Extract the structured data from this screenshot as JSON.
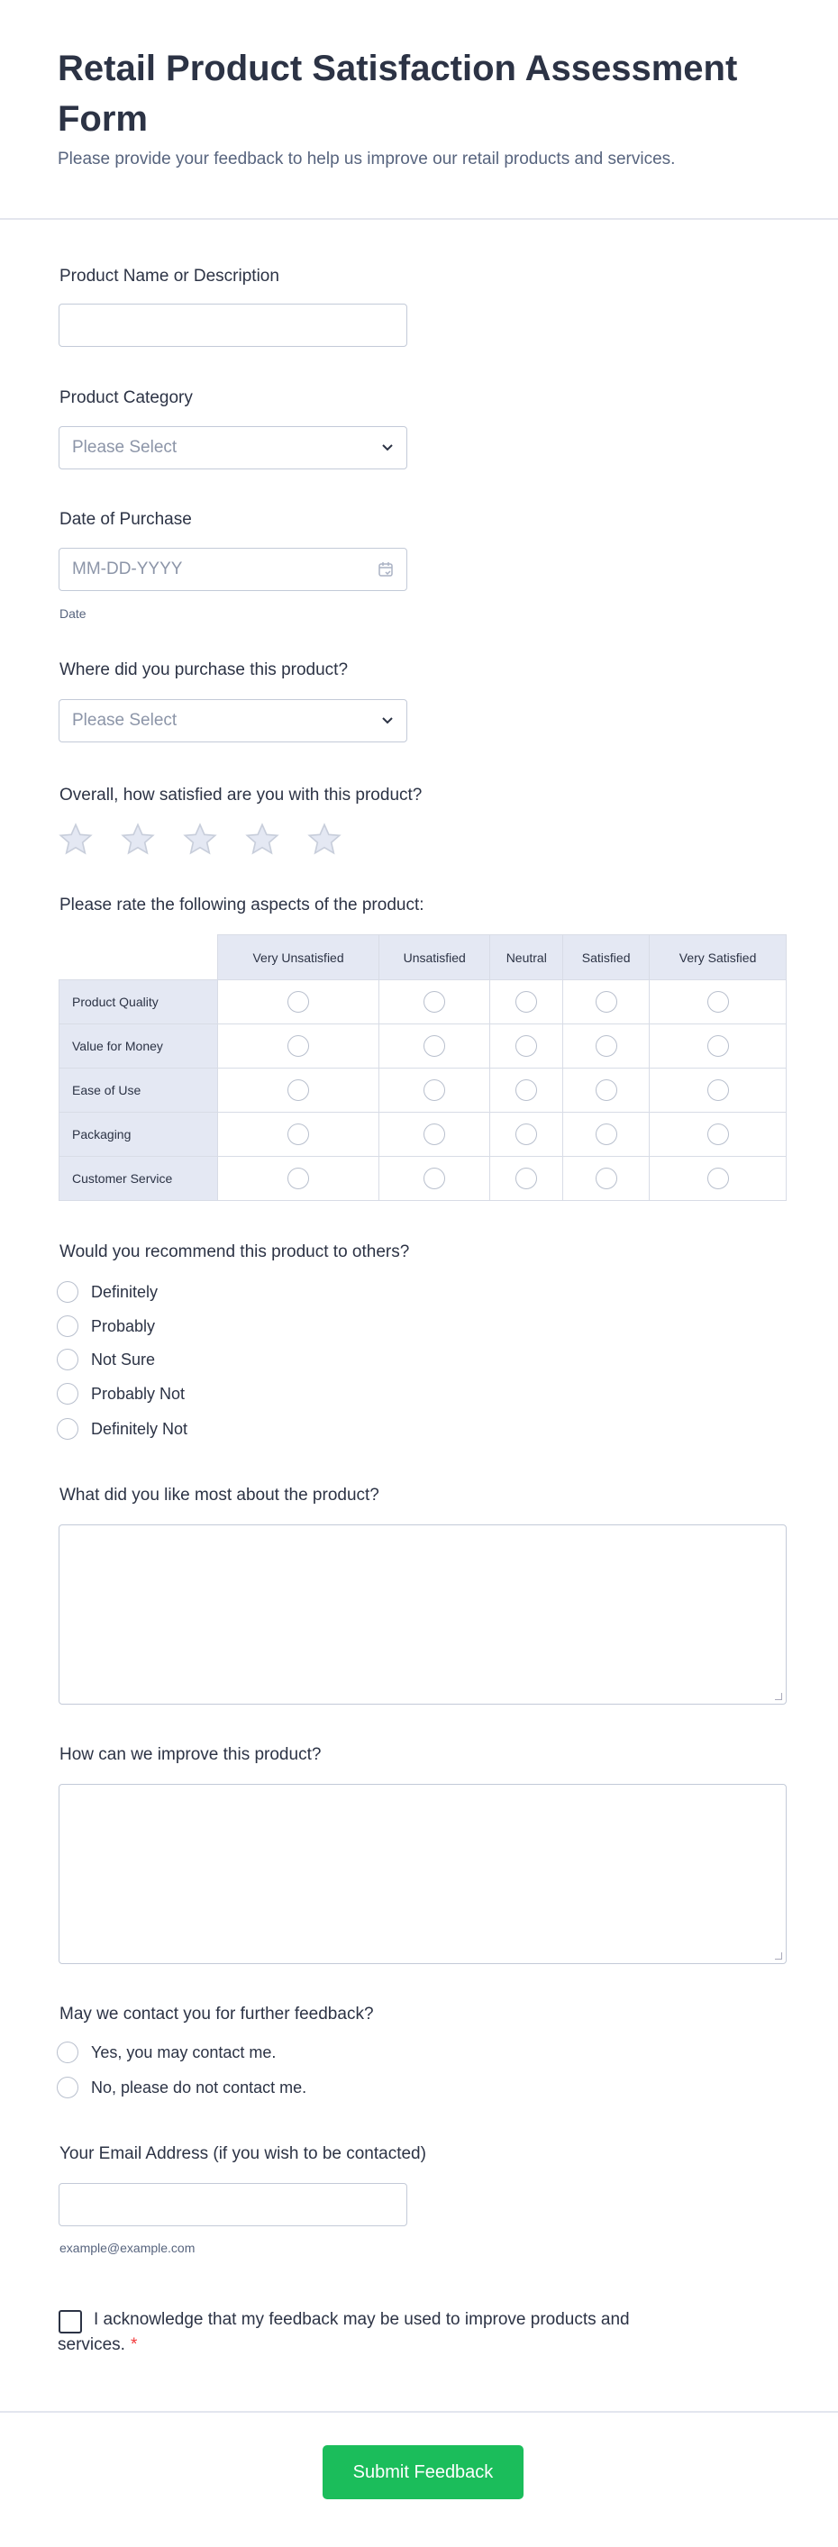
{
  "header": {
    "title": "Retail Product Satisfaction Assessment Form",
    "subtitle": "Please provide your feedback to help us improve our retail products and services."
  },
  "fields": {
    "product_name": {
      "label": "Product Name or Description",
      "value": ""
    },
    "category": {
      "label": "Product Category",
      "placeholder": "Please Select"
    },
    "date": {
      "label": "Date of Purchase",
      "placeholder": "MM-DD-YYYY",
      "sublabel": "Date"
    },
    "where": {
      "label": "Where did you purchase this product?",
      "placeholder": "Please Select"
    },
    "overall": {
      "label": "Overall, how satisfied are you with this product?",
      "stars": 5,
      "rating": 0
    },
    "matrix": {
      "label": "Please rate the following aspects of the product:",
      "columns": [
        "Very Unsatisfied",
        "Unsatisfied",
        "Neutral",
        "Satisfied",
        "Very Satisfied"
      ],
      "rows": [
        "Product Quality",
        "Value for Money",
        "Ease of Use",
        "Packaging",
        "Customer Service"
      ]
    },
    "recommend": {
      "label": "Would you recommend this product to others?",
      "options": [
        "Definitely",
        "Probably",
        "Not Sure",
        "Probably Not",
        "Definitely Not"
      ]
    },
    "liked": {
      "label": "What did you like most about the product?",
      "value": ""
    },
    "improve": {
      "label": "How can we improve this product?",
      "value": ""
    },
    "contact": {
      "label": "May we contact you for further feedback?",
      "options": [
        "Yes, you may contact me.",
        "No, please do not contact me."
      ]
    },
    "email": {
      "label": "Your Email Address (if you wish to be contacted)",
      "value": "",
      "sublabel": "example@example.com"
    },
    "ack": {
      "label": "I acknowledge that my feedback may be used to improve products and services.",
      "required_mark": "*"
    }
  },
  "submit": {
    "label": "Submit Feedback",
    "color": "#1bbd5b"
  },
  "colors": {
    "text": "#2c3345",
    "border": "#c3cad8",
    "matrix_header": "#e4e8f3",
    "required": "#f23a3c"
  }
}
